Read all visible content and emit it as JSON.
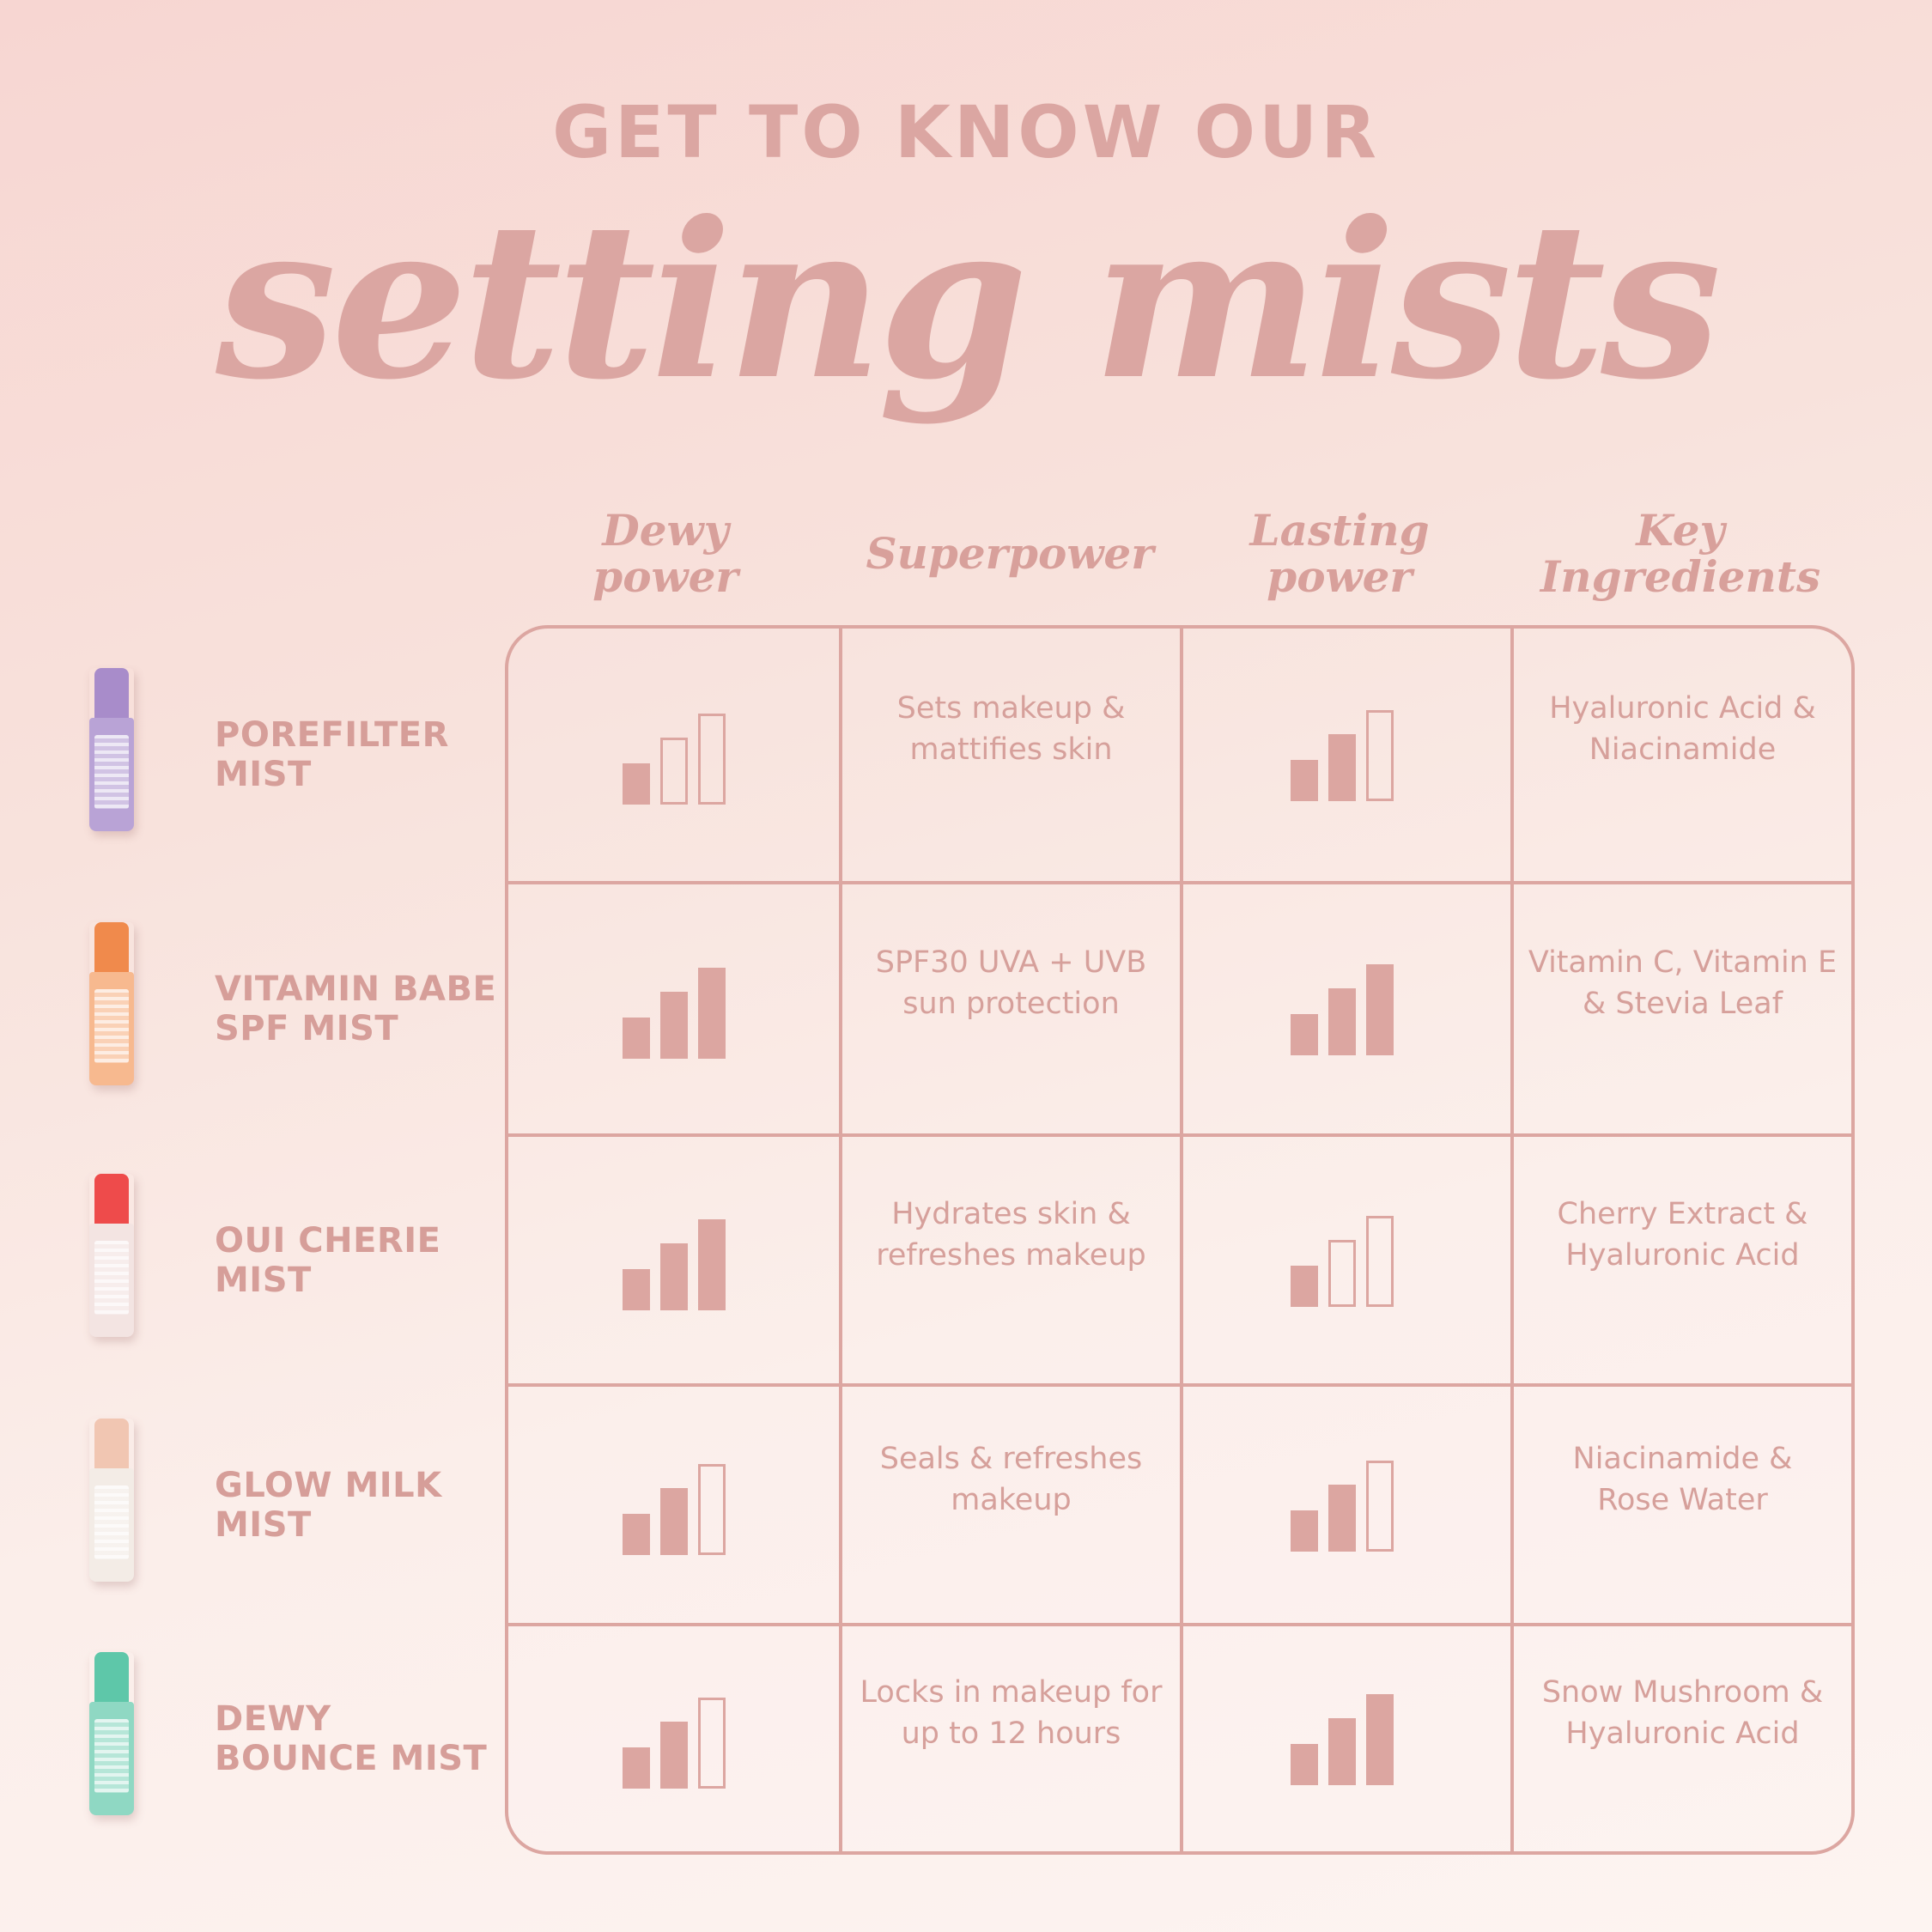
{
  "header": {
    "eyebrow": "GET TO KNOW OUR",
    "title": "setting mists"
  },
  "columns": [
    {
      "label": "Dewy\npower"
    },
    {
      "label": "Superpower"
    },
    {
      "label": "Lasting\npower"
    },
    {
      "label": "Key\nIngredients"
    }
  ],
  "colors": {
    "text": "#d9a19c",
    "line": "#dca6a1"
  },
  "products": [
    {
      "name_line1": "POREFILTER",
      "name_line2": "MIST",
      "bottle_color": "#b9a3d6",
      "cap_color": "#a88cca",
      "dewy_power": 1,
      "superpower_line1": "Sets makeup &",
      "superpower_line2": "mattifies skin",
      "lasting_power": 2,
      "ingredients_line1": "Hyaluronic Acid &",
      "ingredients_line2": "Niacinamide"
    },
    {
      "name_line1": "VITAMIN BABE",
      "name_line2": "SPF MIST",
      "bottle_color": "#f7b98f",
      "cap_color": "#f08a4c",
      "dewy_power": 3,
      "superpower_line1": "SPF30 UVA + UVB",
      "superpower_line2": "sun protection",
      "lasting_power": 3,
      "ingredients_line1": "Vitamin C, Vitamin E",
      "ingredients_line2": "& Stevia Leaf"
    },
    {
      "name_line1": "OUI CHERIE",
      "name_line2": "MIST",
      "bottle_color": "#f3e4e2",
      "cap_color": "#ee4b4b",
      "dewy_power": 3,
      "superpower_line1": "Hydrates skin &",
      "superpower_line2": "refreshes makeup",
      "lasting_power": 1,
      "ingredients_line1": "Cherry Extract &",
      "ingredients_line2": "Hyaluronic Acid"
    },
    {
      "name_line1": "GLOW MILK",
      "name_line2": "MIST",
      "bottle_color": "#f3ece6",
      "cap_color": "#f1c6b2",
      "dewy_power": 2,
      "superpower_line1": "Seals & refreshes",
      "superpower_line2": "makeup",
      "lasting_power": 2,
      "ingredients_line1": "Niacinamide &",
      "ingredients_line2": "Rose Water"
    },
    {
      "name_line1": "DEWY",
      "name_line2": "BOUNCE MIST",
      "bottle_color": "#8fd8c3",
      "cap_color": "#5ec7a9",
      "dewy_power": 2,
      "superpower_line1": "Locks in makeup for",
      "superpower_line2": "up to 12 hours",
      "lasting_power": 3,
      "ingredients_line1": "Snow Mushroom &",
      "ingredients_line2": "Hyaluronic Acid"
    }
  ]
}
